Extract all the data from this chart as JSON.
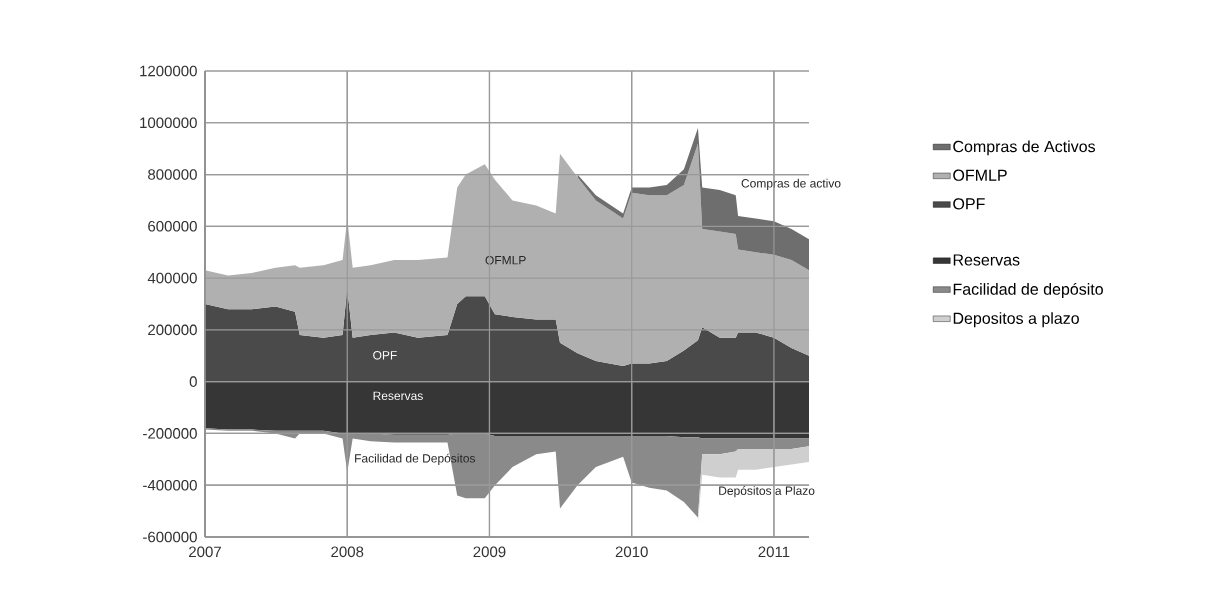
{
  "chart_data": [
    {
      "type": "area",
      "stacked": true,
      "grid": true,
      "legend": "right",
      "tick_labels": false,
      "x": [
        "2007-01-01",
        "2007-03-01",
        "2007-05-01",
        "2007-07-01",
        "2007-08-20",
        "2007-09-01",
        "2007-11-01",
        "2007-12-20",
        "2008-01-01",
        "2008-01-15",
        "2008-03-01",
        "2008-05-01",
        "2008-07-01",
        "2008-09-15",
        "2008-10-10",
        "2008-11-01",
        "2008-12-20",
        "2009-01-15",
        "2009-03-01",
        "2009-05-01",
        "2009-06-20",
        "2009-07-01",
        "2009-08-15",
        "2009-10-01",
        "2009-12-10",
        "2010-01-01",
        "2010-02-15",
        "2010-04-01",
        "2010-05-15",
        "2010-06-20",
        "2010-07-01",
        "2010-08-15",
        "2010-09-25",
        "2010-10-01",
        "2010-11-15",
        "2011-01-01",
        "2011-02-15",
        "2011-04-01"
      ],
      "series": [
        {
          "name": "Reservas",
          "color": "#363636",
          "values": [
            -180000,
            -185000,
            -185000,
            -190000,
            -190000,
            -190000,
            -190000,
            -200000,
            -200000,
            -200000,
            -200000,
            -205000,
            -205000,
            -205000,
            -200000,
            -200000,
            -200000,
            -210000,
            -210000,
            -210000,
            -210000,
            -210000,
            -210000,
            -210000,
            -210000,
            -210000,
            -210000,
            -210000,
            -215000,
            -215000,
            -220000,
            -220000,
            -220000,
            -220000,
            -220000,
            -220000,
            -220000,
            -220000
          ]
        },
        {
          "name": "Facilidad de depósito",
          "color": "#8a8a8a",
          "values": [
            -5000,
            -5000,
            -5000,
            -10000,
            -30000,
            -10000,
            -10000,
            -20000,
            -150000,
            -20000,
            -30000,
            -30000,
            -30000,
            -30000,
            -240000,
            -250000,
            -250000,
            -190000,
            -120000,
            -70000,
            -60000,
            -280000,
            -190000,
            -120000,
            -80000,
            -180000,
            -200000,
            -210000,
            -250000,
            -310000,
            -60000,
            -60000,
            -50000,
            -40000,
            -40000,
            -40000,
            -40000,
            -30000
          ]
        },
        {
          "name": "Depositos a plazo",
          "color": "#cfcfcf",
          "values": [
            null,
            null,
            null,
            null,
            null,
            null,
            null,
            null,
            null,
            null,
            null,
            null,
            null,
            null,
            null,
            null,
            null,
            null,
            null,
            null,
            null,
            null,
            null,
            null,
            null,
            null,
            null,
            null,
            null,
            -20000,
            -80000,
            -90000,
            -100000,
            -80000,
            -80000,
            -70000,
            -60000,
            -60000
          ]
        }
      ],
      "xlim": [
        "2007-01-01",
        "2011-04-01"
      ],
      "xticks": [
        "2007",
        "2008",
        "2009",
        "2010",
        "2011"
      ],
      "ylim": [
        -600000,
        1200000
      ],
      "yticks": [
        -600000,
        -400000,
        -200000,
        0,
        200000,
        400000,
        600000,
        800000,
        1000000,
        1200000
      ]
    },
    {
      "type": "area",
      "stacked": true,
      "grid": true,
      "legend": "right",
      "x": [
        "2007-01-01",
        "2007-03-01",
        "2007-05-01",
        "2007-07-01",
        "2007-08-20",
        "2007-09-01",
        "2007-11-01",
        "2007-12-20",
        "2008-01-01",
        "2008-01-15",
        "2008-03-01",
        "2008-05-01",
        "2008-07-01",
        "2008-09-15",
        "2008-10-10",
        "2008-11-01",
        "2008-12-20",
        "2009-01-15",
        "2009-03-01",
        "2009-05-01",
        "2009-06-20",
        "2009-07-01",
        "2009-08-15",
        "2009-10-01",
        "2009-12-10",
        "2010-01-01",
        "2010-02-15",
        "2010-04-01",
        "2010-05-15",
        "2010-06-20",
        "2010-07-01",
        "2010-08-15",
        "2010-09-25",
        "2010-10-01",
        "2010-11-15",
        "2011-01-01",
        "2011-02-15",
        "2011-04-01"
      ],
      "series": [
        {
          "name": "OPF",
          "color": "#4a4a4a",
          "values": [
            300000,
            280000,
            280000,
            290000,
            270000,
            180000,
            170000,
            180000,
            360000,
            170000,
            180000,
            190000,
            170000,
            180000,
            300000,
            330000,
            330000,
            260000,
            250000,
            240000,
            240000,
            150000,
            110000,
            80000,
            60000,
            70000,
            70000,
            80000,
            120000,
            160000,
            210000,
            170000,
            170000,
            190000,
            190000,
            170000,
            130000,
            100000
          ]
        },
        {
          "name": "OFMLP",
          "color": "#b0b0b0",
          "values": [
            130000,
            130000,
            140000,
            150000,
            180000,
            260000,
            280000,
            290000,
            270000,
            270000,
            270000,
            280000,
            300000,
            300000,
            450000,
            470000,
            510000,
            520000,
            450000,
            440000,
            410000,
            730000,
            680000,
            620000,
            570000,
            660000,
            650000,
            640000,
            640000,
            760000,
            380000,
            410000,
            400000,
            320000,
            310000,
            320000,
            340000,
            330000
          ]
        },
        {
          "name": "Compras de Activos",
          "color": "#6e6e6e",
          "values": [
            null,
            null,
            null,
            null,
            null,
            null,
            null,
            null,
            null,
            null,
            null,
            null,
            null,
            null,
            null,
            null,
            null,
            null,
            null,
            null,
            null,
            null,
            10000,
            20000,
            20000,
            20000,
            30000,
            40000,
            60000,
            60000,
            160000,
            160000,
            150000,
            130000,
            130000,
            130000,
            120000,
            120000
          ]
        }
      ],
      "xlim": [
        "2007-01-01",
        "2011-04-01"
      ],
      "xticks": [
        {
          "value": "2007",
          "label": "2007"
        },
        {
          "value": "2008",
          "label": "2008"
        },
        {
          "value": "2009",
          "label": "2009"
        },
        {
          "value": "2010",
          "label": "2010"
        },
        {
          "value": "2011",
          "label": "2011"
        }
      ],
      "ylim": [
        -600000,
        1200000
      ],
      "yticks": [
        -600000,
        -400000,
        -200000,
        0,
        200000,
        400000,
        600000,
        800000,
        1000000,
        1200000
      ],
      "annotations": [
        "Compras de activo",
        "OFMLP",
        "OPF",
        "Reservas",
        "Facilidad de Depósitos",
        "Depósitos a Plazo"
      ]
    }
  ]
}
